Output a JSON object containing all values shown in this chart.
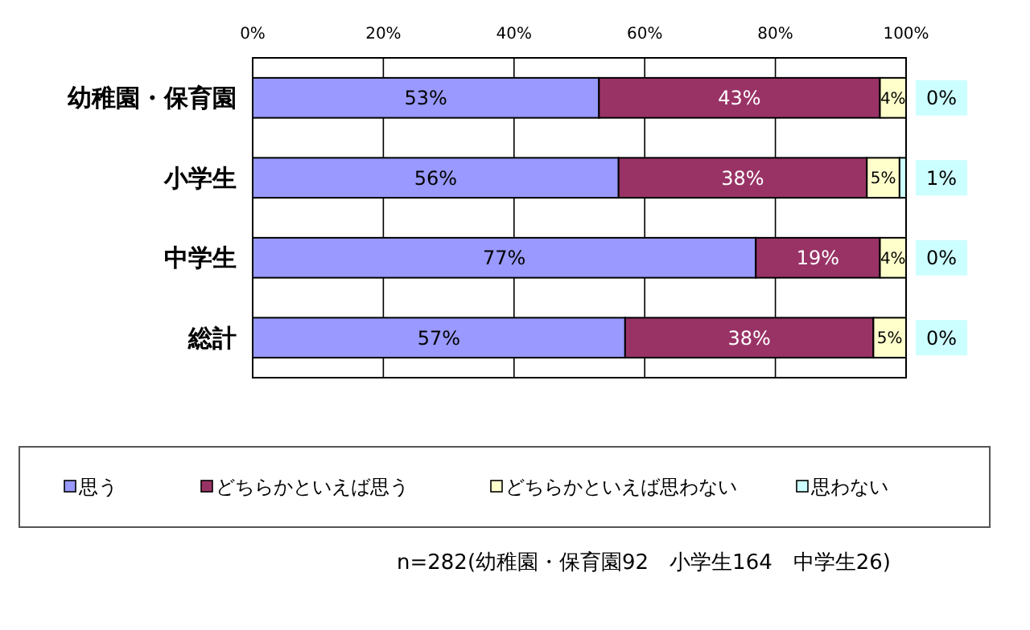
{
  "chart_data": {
    "type": "bar",
    "orientation": "horizontal",
    "stacked": true,
    "categories": [
      "幼稚園・保育園",
      "小学生",
      "中学生",
      "総計"
    ],
    "series": [
      {
        "name": "思う",
        "color": "#9999ff",
        "values": [
          53,
          56,
          77,
          57
        ],
        "value_labels": [
          "53%",
          "56%",
          "77%",
          "57%"
        ]
      },
      {
        "name": "どちらかといえば思う",
        "color": "#993366",
        "values": [
          43,
          38,
          19,
          38
        ],
        "value_labels": [
          "43%",
          "38%",
          "19%",
          "38%"
        ]
      },
      {
        "name": "どちらかといえば思わない",
        "color": "#ffffcc",
        "values": [
          4,
          5,
          4,
          5
        ],
        "value_labels": [
          "4%",
          "5%",
          "4%",
          "5%"
        ]
      },
      {
        "name": "思わない",
        "color": "#ccffff",
        "values": [
          0,
          1,
          0,
          0
        ],
        "value_labels": [
          "0%",
          "1%",
          "0%",
          "0%"
        ]
      }
    ],
    "xlim": [
      0,
      100
    ],
    "xticks": [
      {
        "value": 0,
        "label": "0%"
      },
      {
        "value": 20,
        "label": "20%"
      },
      {
        "value": 40,
        "label": "40%"
      },
      {
        "value": 60,
        "label": "60%"
      },
      {
        "value": 80,
        "label": "80%"
      },
      {
        "value": 100,
        "label": "100%"
      }
    ],
    "grid": "x",
    "legend": "bottom",
    "annotations": [
      "n=282(幼稚園・保育園92　小学生164　中学生26)"
    ]
  }
}
